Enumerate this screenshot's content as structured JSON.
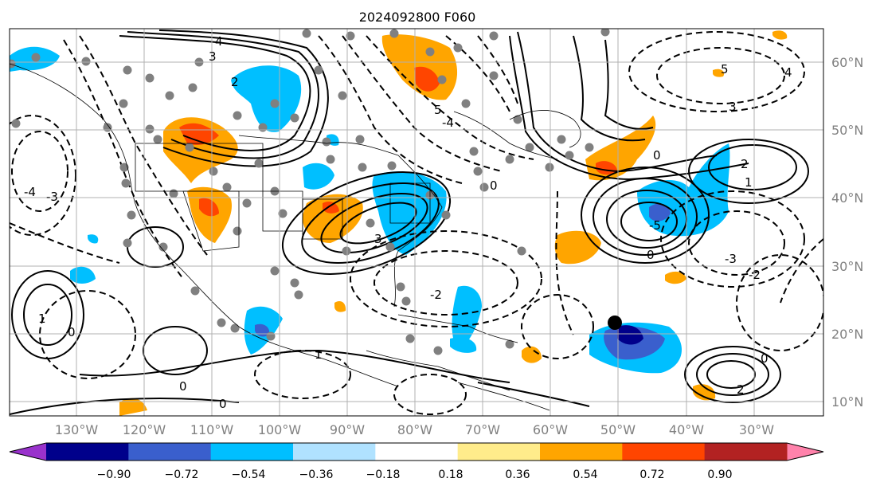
{
  "title": "2024092800 F060",
  "map": {
    "lon_labels": [
      "130°W",
      "120°W",
      "110°W",
      "100°W",
      "90°W",
      "80°W",
      "70°W",
      "60°W",
      "50°W",
      "40°W",
      "30°W"
    ],
    "lat_labels": [
      "60°N",
      "50°N",
      "40°N",
      "30°N",
      "20°N",
      "10°N"
    ],
    "contour_labels": [
      "4",
      "3",
      "2",
      "1",
      "0",
      "-1",
      "-2",
      "-3",
      "-4",
      "-5",
      "5"
    ]
  },
  "colorbar": {
    "tick_labels": [
      "−0.90",
      "−0.72",
      "−0.54",
      "−0.36",
      "−0.18",
      "0.18",
      "0.36",
      "0.54",
      "0.72",
      "0.90"
    ],
    "colors": [
      "#9932cc",
      "#00008b",
      "#3a5fcd",
      "#00bfff",
      "#b0e2ff",
      "#ffffff",
      "#ffec8b",
      "#ffa500",
      "#ff4500",
      "#b22222",
      "#ff82ab"
    ]
  },
  "colors": {
    "grid": "#b0b0b0",
    "label_gray": "#808080",
    "marker": "#000000",
    "dots": "#808080"
  }
}
